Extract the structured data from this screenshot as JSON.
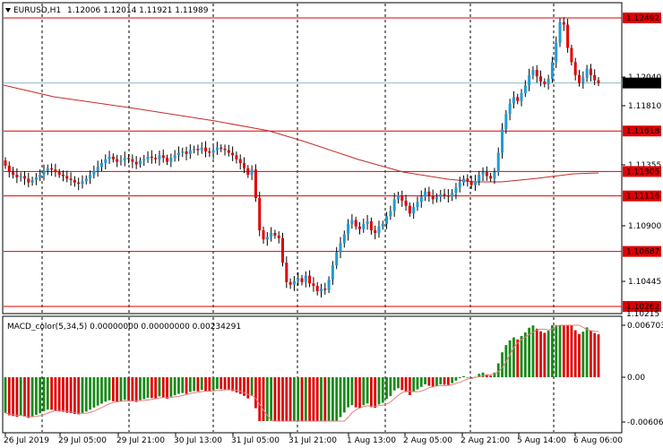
{
  "header": {
    "symbol": "EURUSD,H1",
    "ohlc": "1.12006 1.12014 1.11921 1.11989",
    "collapse_icon": "triangle-down-icon"
  },
  "macd_panel": {
    "title": "MACD_color(5,34,5) 0.00000000 0.00000000 0.00234291"
  },
  "colors": {
    "bull": "#1f9bd7",
    "bear": "#e00000",
    "hline": "#e00000",
    "ma": "#c42a2a",
    "histogram_up": "#1a8a1a",
    "histogram_down": "#e00000",
    "signal": "#e08080",
    "grid": "#000000",
    "bid_line": "#8fb8c8"
  },
  "price_axis": {
    "ticks": [
      "1.12040",
      "1.11810",
      "1.11355",
      "1.10900",
      "1.10445"
    ],
    "levels": [
      {
        "label": "1.12492",
        "kind": "resistance"
      },
      {
        "label": "1.11618",
        "kind": "resistance"
      },
      {
        "label": "1.11305",
        "kind": "support"
      },
      {
        "label": "1.11116",
        "kind": "support"
      },
      {
        "label": "1.10687",
        "kind": "support"
      },
      {
        "label": "1.10262",
        "kind": "support"
      }
    ],
    "current_price": "1.11989",
    "bottom_label": "1.10215"
  },
  "macd_axis": {
    "ticks": [
      "0.0067034",
      "0.00",
      "-0.0060645"
    ]
  },
  "time_axis": {
    "labels": [
      "26 Jul 2019",
      "29 Jul 05:00",
      "29 Jul 21:00",
      "30 Jul 13:00",
      "31 Jul 05:00",
      "31 Jul 21:00",
      "1 Aug 13:00",
      "2 Aug 05:00",
      "2 Aug 21:00",
      "5 Aug 14:00",
      "6 Aug 06:00"
    ]
  },
  "chart_data": {
    "type": "candlestick",
    "symbol": "EURUSD",
    "timeframe": "H1",
    "ylim": [
      1.10215,
      1.12492
    ],
    "levels": [
      1.12492,
      1.11618,
      1.11305,
      1.11116,
      1.10687,
      1.10262
    ],
    "current": 1.11989,
    "closes": [
      1.1135,
      1.113,
      1.1128,
      1.1126,
      1.1127,
      1.1125,
      1.1122,
      1.1124,
      1.1126,
      1.1128,
      1.1131,
      1.1133,
      1.1132,
      1.113,
      1.1128,
      1.1127,
      1.1125,
      1.1124,
      1.1122,
      1.1121,
      1.1123,
      1.1125,
      1.1128,
      1.1131,
      1.1134,
      1.1137,
      1.114,
      1.1142,
      1.114,
      1.1138,
      1.1139,
      1.1141,
      1.114,
      1.1138,
      1.1136,
      1.1139,
      1.114,
      1.1142,
      1.1141,
      1.114,
      1.1143,
      1.1141,
      1.1138,
      1.1141,
      1.1143,
      1.1145,
      1.1146,
      1.1144,
      1.1147,
      1.1148,
      1.1147,
      1.1149,
      1.1146,
      1.1145,
      1.1147,
      1.1149,
      1.1148,
      1.1147,
      1.1145,
      1.1143,
      1.114,
      1.1137,
      1.1133,
      1.1128,
      1.1132,
      1.111,
      1.1085,
      1.1078,
      1.108,
      1.1083,
      1.1081,
      1.1079,
      1.106,
      1.1045,
      1.1043,
      1.1046,
      1.1048,
      1.1045,
      1.105,
      1.1044,
      1.1042,
      1.1038,
      1.104,
      1.1039,
      1.1047,
      1.1058,
      1.1068,
      1.1075,
      1.1082,
      1.109,
      1.1093,
      1.1088,
      1.1086,
      1.109,
      1.1092,
      1.1085,
      1.1083,
      1.1088,
      1.109,
      1.1096,
      1.11,
      1.1109,
      1.1112,
      1.1108,
      1.1104,
      1.1098,
      1.1103,
      1.1107,
      1.1111,
      1.1115,
      1.1112,
      1.1109,
      1.1111,
      1.1113,
      1.1112,
      1.1111,
      1.1114,
      1.1118,
      1.1122,
      1.1125,
      1.1123,
      1.112,
      1.1123,
      1.1128,
      1.113,
      1.1127,
      1.1125,
      1.113,
      1.1145,
      1.1163,
      1.1175,
      1.1183,
      1.1188,
      1.1185,
      1.1191,
      1.1197,
      1.1205,
      1.1209,
      1.1204,
      1.12,
      1.1198,
      1.1202,
      1.1215,
      1.123,
      1.1246,
      1.1244,
      1.1226,
      1.1215,
      1.1205,
      1.1199,
      1.1203,
      1.121,
      1.1205,
      1.1201,
      1.1199
    ],
    "ma_period": 200,
    "macd": {
      "name": "MACD_color(5,34,5)",
      "values": [
        0.0,
        0.0,
        0.00234291
      ],
      "ylim": [
        -0.0060645,
        0.0067034
      ]
    }
  }
}
